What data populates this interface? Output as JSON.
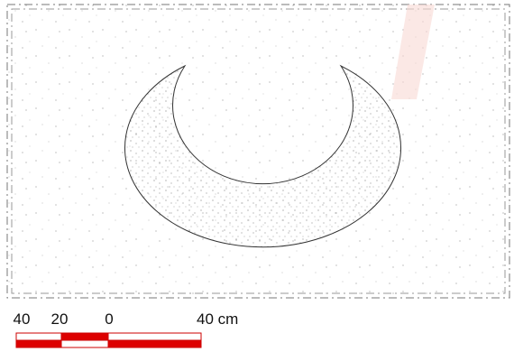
{
  "scale_bar": {
    "labels": [
      "40",
      "20",
      "0",
      "40 cm"
    ]
  }
}
